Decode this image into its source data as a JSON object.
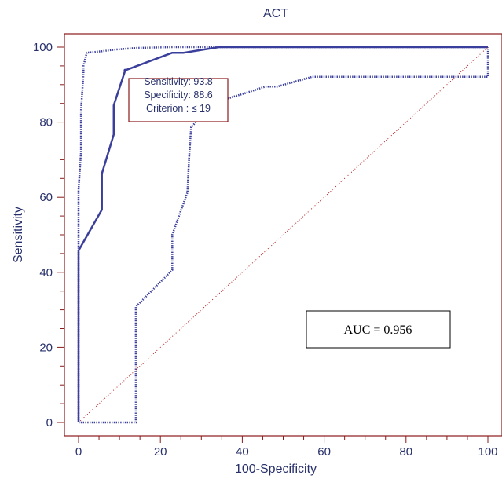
{
  "chart_data": {
    "type": "line",
    "title": "ACT",
    "xlabel": "100-Specificity",
    "ylabel": "Sensitivity",
    "xlim": [
      0,
      100
    ],
    "ylim": [
      0,
      100
    ],
    "x_ticks": [
      "0",
      "20",
      "40",
      "60",
      "80",
      "100"
    ],
    "y_ticks": [
      "0",
      "20",
      "40",
      "60",
      "80",
      "100"
    ],
    "grid": false,
    "series": [
      {
        "style": "solid",
        "color": "#3b3f9c",
        "x": [
          0,
          0,
          5.7,
          5.7,
          8.6,
          8.6,
          11.4,
          22.9,
          25.7,
          34.3,
          100
        ],
        "y": [
          0,
          45.8,
          56.7,
          66.3,
          76.7,
          84.5,
          93.8,
          98.5,
          98.5,
          100,
          100
        ]
      },
      {
        "style": "dotted",
        "color": "#3b3f9c",
        "x": [
          0,
          0,
          0.6,
          0.6,
          1.2,
          1.2,
          2.0,
          5.7,
          8.6,
          14.3,
          22.9,
          100
        ],
        "y": [
          0,
          62,
          72,
          83,
          93,
          95,
          98.5,
          98.9,
          99.3,
          99.8,
          100,
          100
        ]
      },
      {
        "style": "dotted",
        "color": "#3b3f9c",
        "x": [
          0,
          14.0,
          14.0,
          22.9,
          22.9,
          26.6,
          27.0,
          27.5,
          31.4,
          34.0,
          40.0,
          45.7,
          48.6,
          57.1,
          100,
          100
        ],
        "y": [
          0,
          0,
          30.8,
          40.6,
          50.0,
          61.3,
          70.4,
          78.6,
          83.5,
          85.5,
          87.5,
          89.5,
          89.5,
          92.1,
          92.1,
          100
        ]
      },
      {
        "style": "diagonal",
        "color": "#b22222",
        "x": [
          0,
          100
        ],
        "y": [
          0,
          100
        ]
      }
    ],
    "callout": {
      "lines": [
        "Sensitivity: 93.8",
        "Specificity: 88.6",
        "Criterion : ≤ 19"
      ],
      "point": [
        11.4,
        93.8
      ],
      "border_color": "#8b1a1a"
    },
    "annotation": "AUC = 0.956",
    "frame_color": "#8b1a1a",
    "text_color": "#27306b"
  }
}
